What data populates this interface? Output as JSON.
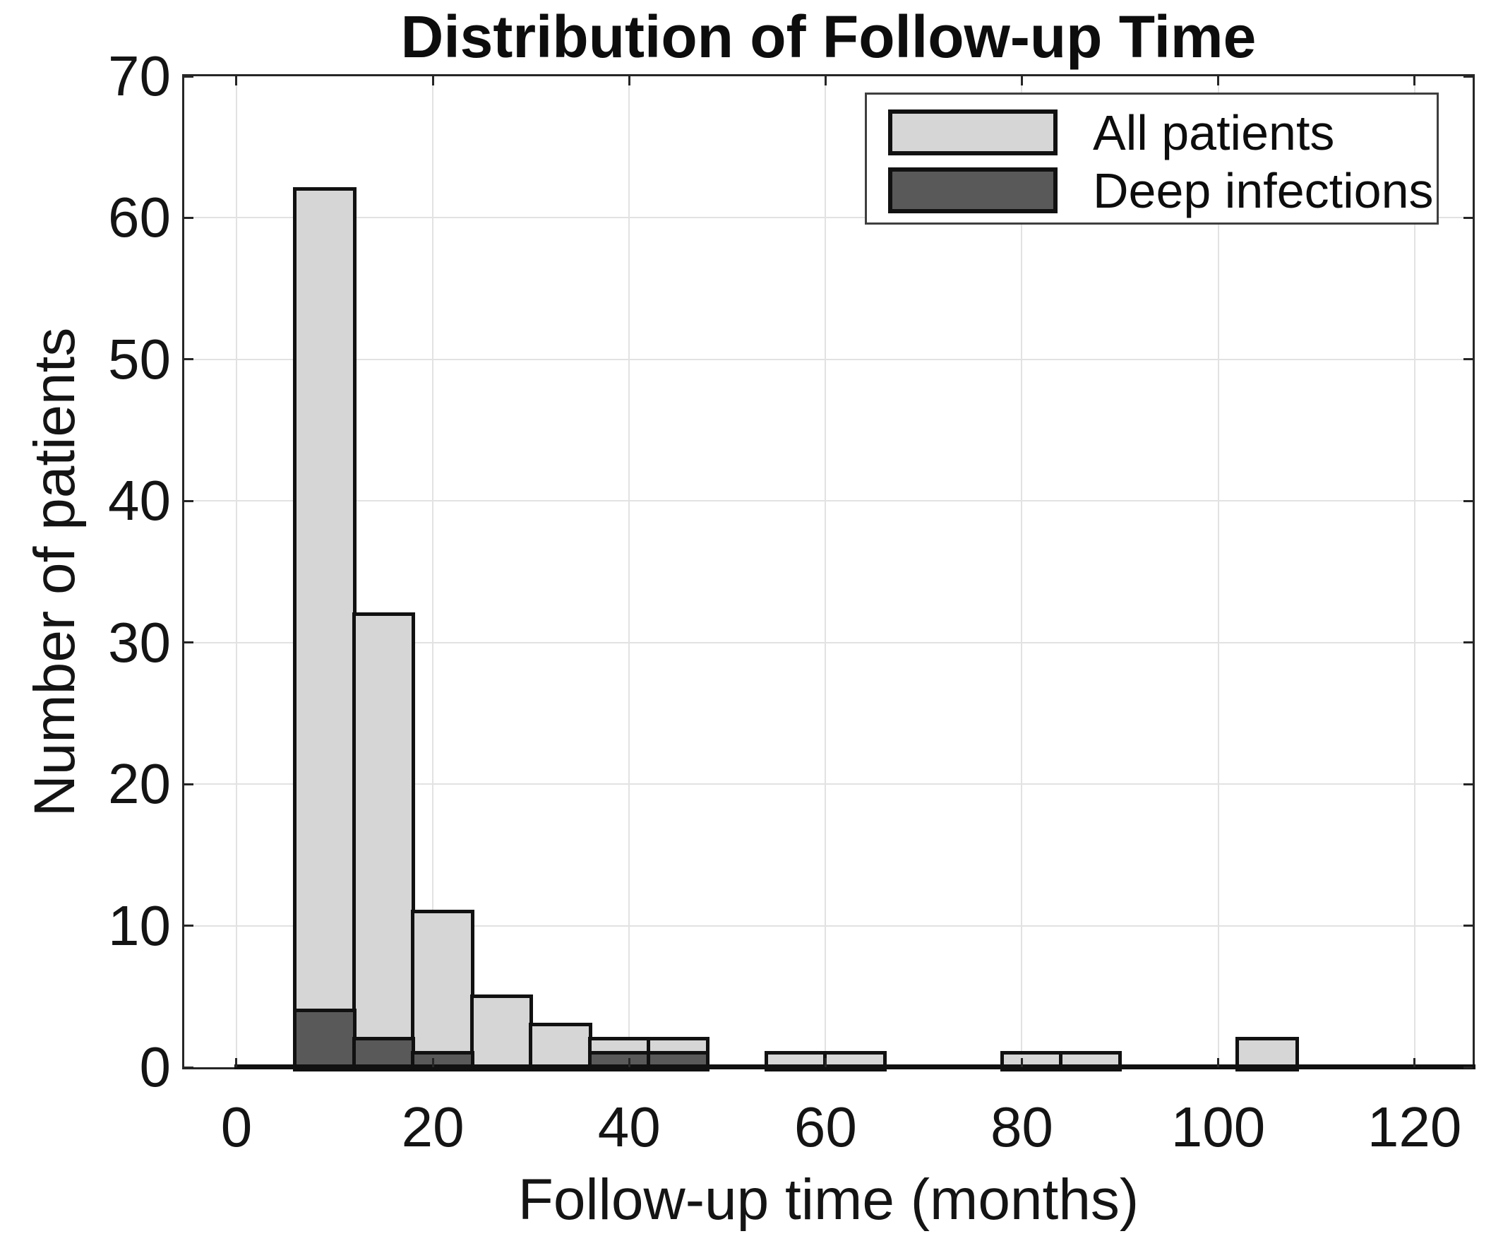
{
  "figure": {
    "title": "Distribution of Follow-up Time",
    "xlabel": "Follow-up time (months)",
    "ylabel": "Number of patients"
  },
  "legend": {
    "items": [
      {
        "label": "All patients",
        "swatch_color": "#d6d6d6"
      },
      {
        "label": "Deep infections",
        "swatch_color": "#595959"
      }
    ]
  },
  "colors": {
    "background": "#ffffff",
    "bar_fill_all_patients": "#d6d6d6",
    "bar_fill_deep_infections": "#595959",
    "bar_edge": "#111111",
    "grid": "#e2e2e2",
    "axis_box": "#262626",
    "text": "#141414",
    "legend_border": "#3f3f3f"
  },
  "chart_data": {
    "type": "bar",
    "subtype": "overlaid-histogram",
    "title": "Distribution of Follow-up Time",
    "xlabel": "Follow-up time (months)",
    "ylabel": "Number of patients",
    "bin_width": 6,
    "series": [
      {
        "name": "All patients",
        "fill_color": "#d6d6d6",
        "bins": [
          {
            "start": 6,
            "end": 12,
            "count": 62
          },
          {
            "start": 12,
            "end": 18,
            "count": 32
          },
          {
            "start": 18,
            "end": 24,
            "count": 11
          },
          {
            "start": 24,
            "end": 30,
            "count": 5
          },
          {
            "start": 30,
            "end": 36,
            "count": 3
          },
          {
            "start": 36,
            "end": 42,
            "count": 2
          },
          {
            "start": 42,
            "end": 48,
            "count": 2
          },
          {
            "start": 54,
            "end": 60,
            "count": 1
          },
          {
            "start": 60,
            "end": 66,
            "count": 1
          },
          {
            "start": 78,
            "end": 84,
            "count": 1
          },
          {
            "start": 84,
            "end": 90,
            "count": 1
          },
          {
            "start": 102,
            "end": 108,
            "count": 2
          }
        ]
      },
      {
        "name": "Deep infections",
        "fill_color": "#595959",
        "bins": [
          {
            "start": 6,
            "end": 12,
            "count": 4
          },
          {
            "start": 12,
            "end": 18,
            "count": 2
          },
          {
            "start": 18,
            "end": 24,
            "count": 1
          },
          {
            "start": 36,
            "end": 42,
            "count": 1
          },
          {
            "start": 42,
            "end": 48,
            "count": 1
          }
        ]
      }
    ],
    "xticks": [
      0,
      20,
      40,
      60,
      80,
      100,
      120
    ],
    "yticks": [
      0,
      10,
      20,
      30,
      40,
      50,
      60,
      70
    ],
    "xlim": [
      -5.32,
      125.92
    ],
    "ylim": [
      0,
      70
    ],
    "grid": true,
    "legend_position": "top-right",
    "zero_bin_outline": {
      "from": 0,
      "to": 126
    }
  }
}
